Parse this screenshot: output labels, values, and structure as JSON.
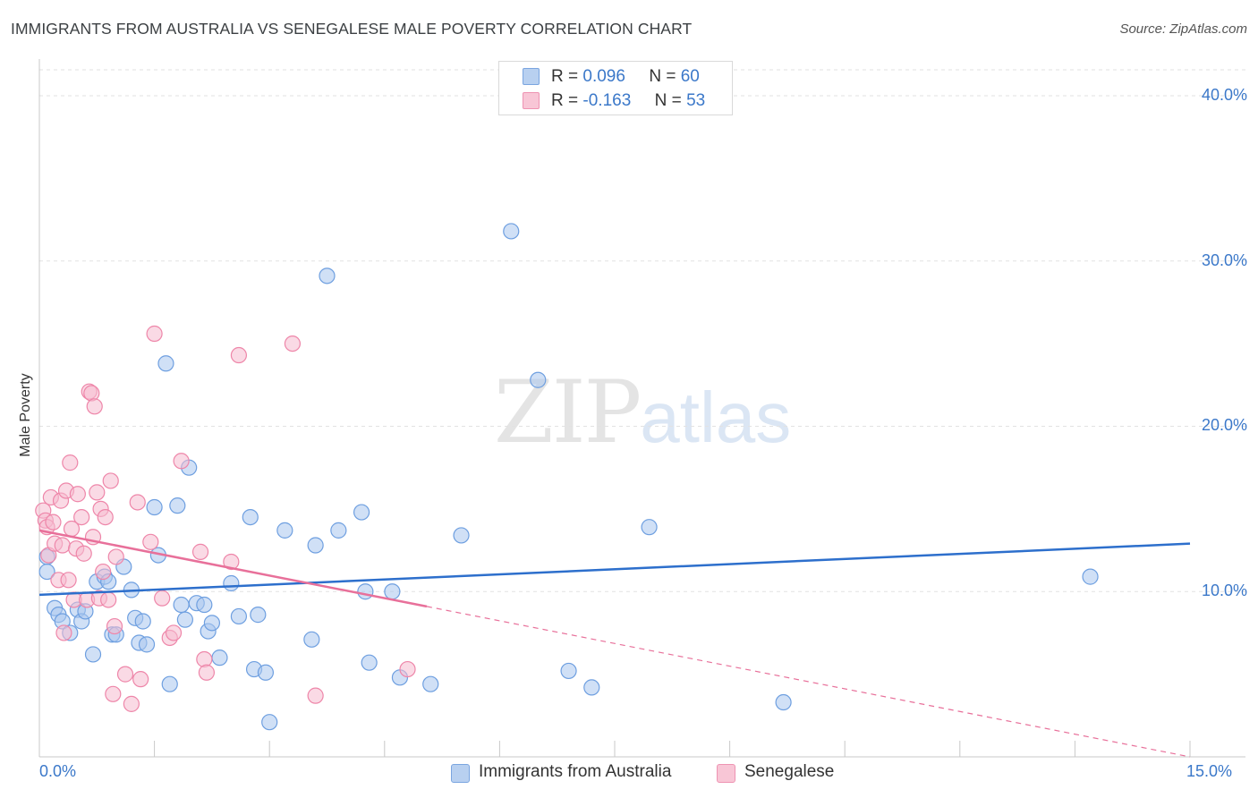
{
  "header": {
    "title": "IMMIGRANTS FROM AUSTRALIA VS SENEGALESE MALE POVERTY CORRELATION CHART",
    "source": "Source: ZipAtlas.com"
  },
  "watermark": {
    "zip": "ZIP",
    "atlas": "atlas"
  },
  "legend": {
    "r_label": "R =",
    "n_label": "N =",
    "rows": [
      {
        "r": "0.096",
        "n": "60",
        "fill": "#b8d0f0",
        "stroke": "#7aa5e0"
      },
      {
        "r": "-0.163",
        "n": "53",
        "fill": "#f8c6d6",
        "stroke": "#ee93b2"
      }
    ]
  },
  "colors": {
    "blue_fill": "#a9c6ee",
    "blue_stroke": "#6e9fe0",
    "blue_line": "#2d6fcc",
    "pink_fill": "#f6bccf",
    "pink_stroke": "#ee86a9",
    "pink_line": "#e8709a",
    "grid": "#e2e2e2",
    "tick_label": "#3b78c9"
  },
  "chart_data": {
    "type": "scatter",
    "title": "IMMIGRANTS FROM AUSTRALIA VS SENEGALESE MALE POVERTY CORRELATION CHART",
    "xlabel": "",
    "ylabel": "Male Poverty",
    "xlim": [
      0,
      15
    ],
    "ylim": [
      0,
      42
    ],
    "x_tick_labels": [
      "0.0%",
      "15.0%"
    ],
    "y_ticks": [
      10,
      20,
      30,
      40
    ],
    "y_tick_labels": [
      "10.0%",
      "20.0%",
      "30.0%",
      "40.0%"
    ],
    "series": [
      {
        "name": "Immigrants from Australia",
        "color": "#a9c6ee",
        "r": 0.096,
        "n": 60,
        "trend": {
          "x": [
            0,
            15
          ],
          "y": [
            9.8,
            12.9
          ]
        },
        "points": [
          [
            0.1,
            12.1
          ],
          [
            0.1,
            11.2
          ],
          [
            0.2,
            9.0
          ],
          [
            0.25,
            8.6
          ],
          [
            0.3,
            8.2
          ],
          [
            0.4,
            7.5
          ],
          [
            0.5,
            8.9
          ],
          [
            0.55,
            8.2
          ],
          [
            0.6,
            8.8
          ],
          [
            0.7,
            6.2
          ],
          [
            0.75,
            10.6
          ],
          [
            0.85,
            10.9
          ],
          [
            0.9,
            10.6
          ],
          [
            0.95,
            7.4
          ],
          [
            1.0,
            7.4
          ],
          [
            1.1,
            11.5
          ],
          [
            1.2,
            10.1
          ],
          [
            1.25,
            8.4
          ],
          [
            1.3,
            6.9
          ],
          [
            1.35,
            8.2
          ],
          [
            1.4,
            6.8
          ],
          [
            1.5,
            15.1
          ],
          [
            1.55,
            12.2
          ],
          [
            1.65,
            23.8
          ],
          [
            1.7,
            4.4
          ],
          [
            1.8,
            15.2
          ],
          [
            1.85,
            9.2
          ],
          [
            1.9,
            8.3
          ],
          [
            1.95,
            17.5
          ],
          [
            2.05,
            9.3
          ],
          [
            2.15,
            9.2
          ],
          [
            2.2,
            7.6
          ],
          [
            2.25,
            8.1
          ],
          [
            2.35,
            6.0
          ],
          [
            2.5,
            10.5
          ],
          [
            2.6,
            8.5
          ],
          [
            2.75,
            14.5
          ],
          [
            2.8,
            5.3
          ],
          [
            2.85,
            8.6
          ],
          [
            2.95,
            5.1
          ],
          [
            3.0,
            2.1
          ],
          [
            3.2,
            13.7
          ],
          [
            3.55,
            7.1
          ],
          [
            3.6,
            12.8
          ],
          [
            3.75,
            29.1
          ],
          [
            3.9,
            13.7
          ],
          [
            4.2,
            14.8
          ],
          [
            4.25,
            10.0
          ],
          [
            4.3,
            5.7
          ],
          [
            4.6,
            10.0
          ],
          [
            4.7,
            4.8
          ],
          [
            5.1,
            4.4
          ],
          [
            5.5,
            13.4
          ],
          [
            6.15,
            31.8
          ],
          [
            6.5,
            22.8
          ],
          [
            6.9,
            5.2
          ],
          [
            7.2,
            4.2
          ],
          [
            7.95,
            13.9
          ],
          [
            9.7,
            3.3
          ],
          [
            13.7,
            10.9
          ]
        ]
      },
      {
        "name": "Senegalese",
        "color": "#f6bccf",
        "r": -0.163,
        "n": 53,
        "trend": {
          "x": [
            0,
            5.05
          ],
          "y": [
            13.7,
            9.1
          ]
        },
        "trend_extrapolated": {
          "x": [
            5.05,
            15
          ],
          "y": [
            9.1,
            0.0
          ]
        },
        "points": [
          [
            0.05,
            14.9
          ],
          [
            0.08,
            14.3
          ],
          [
            0.1,
            13.9
          ],
          [
            0.12,
            12.2
          ],
          [
            0.15,
            15.7
          ],
          [
            0.18,
            14.2
          ],
          [
            0.2,
            12.9
          ],
          [
            0.25,
            10.7
          ],
          [
            0.28,
            15.5
          ],
          [
            0.3,
            12.8
          ],
          [
            0.32,
            7.5
          ],
          [
            0.35,
            16.1
          ],
          [
            0.38,
            10.7
          ],
          [
            0.4,
            17.8
          ],
          [
            0.42,
            13.8
          ],
          [
            0.45,
            9.5
          ],
          [
            0.48,
            12.6
          ],
          [
            0.5,
            15.9
          ],
          [
            0.55,
            14.5
          ],
          [
            0.58,
            12.3
          ],
          [
            0.62,
            9.5
          ],
          [
            0.65,
            22.1
          ],
          [
            0.68,
            22.0
          ],
          [
            0.7,
            13.3
          ],
          [
            0.72,
            21.2
          ],
          [
            0.75,
            16.0
          ],
          [
            0.78,
            9.6
          ],
          [
            0.8,
            15.0
          ],
          [
            0.83,
            11.2
          ],
          [
            0.86,
            14.5
          ],
          [
            0.9,
            9.5
          ],
          [
            0.93,
            16.7
          ],
          [
            0.96,
            3.8
          ],
          [
            0.98,
            7.9
          ],
          [
            1.0,
            12.1
          ],
          [
            1.12,
            5.0
          ],
          [
            1.2,
            3.2
          ],
          [
            1.28,
            15.4
          ],
          [
            1.32,
            4.7
          ],
          [
            1.45,
            13.0
          ],
          [
            1.5,
            25.6
          ],
          [
            1.6,
            9.6
          ],
          [
            1.7,
            7.2
          ],
          [
            1.75,
            7.5
          ],
          [
            1.85,
            17.9
          ],
          [
            2.1,
            12.4
          ],
          [
            2.15,
            5.9
          ],
          [
            2.18,
            5.1
          ],
          [
            2.5,
            11.8
          ],
          [
            2.6,
            24.3
          ],
          [
            3.3,
            25.0
          ],
          [
            3.6,
            3.7
          ],
          [
            4.8,
            5.3
          ]
        ]
      }
    ]
  },
  "bottom_legend": {
    "items": [
      {
        "label": "Immigrants from Australia",
        "fill": "#b8d0f0",
        "stroke": "#7aa5e0"
      },
      {
        "label": "Senegalese",
        "fill": "#f8c6d6",
        "stroke": "#ee93b2"
      }
    ]
  }
}
